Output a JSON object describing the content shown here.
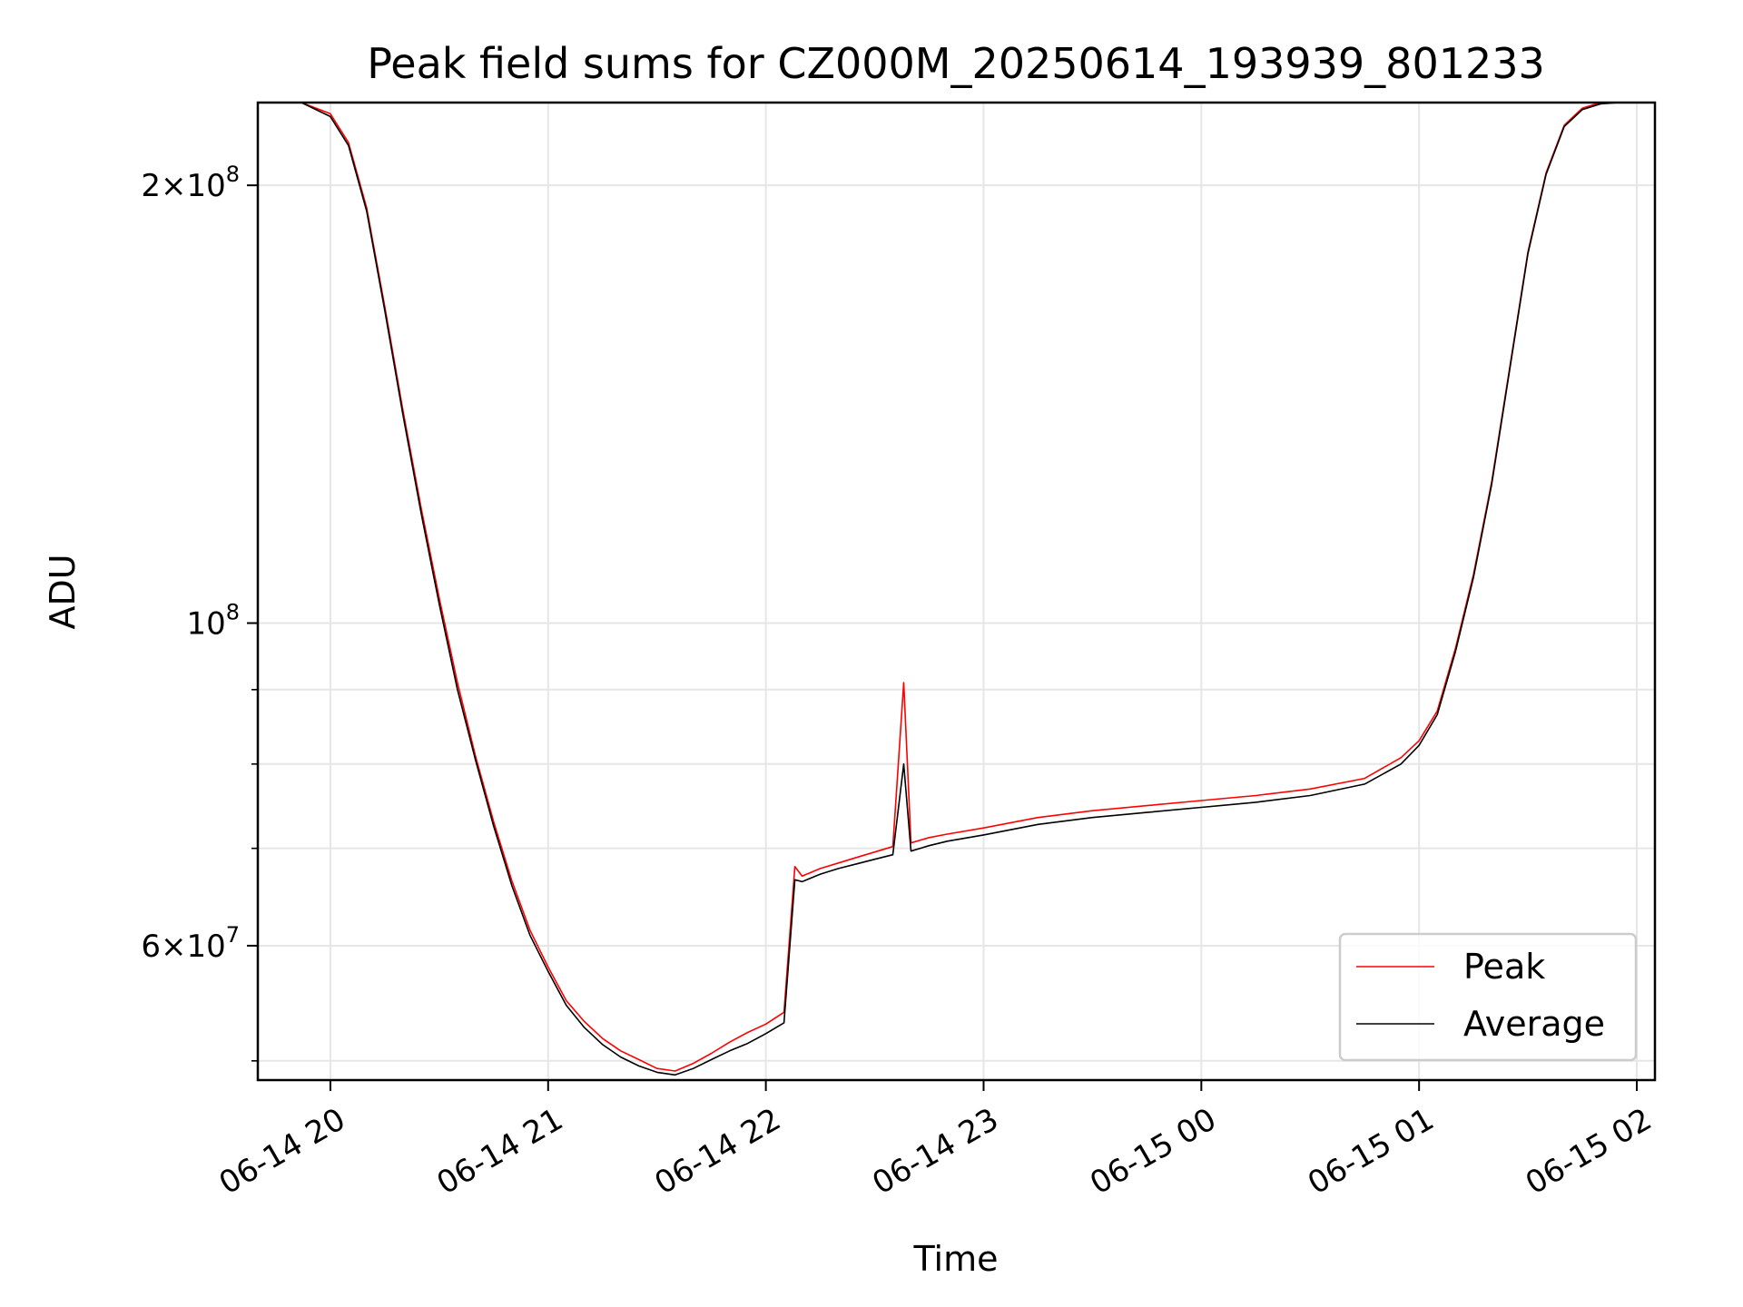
{
  "chart_data": {
    "type": "line",
    "title": "Peak field sums for CZ000M_20250614_193939_801233",
    "xlabel": "Time",
    "ylabel": "ADU",
    "x_scale": "time",
    "y_scale": "log",
    "xlim": [
      "2025-06-14 19:40",
      "2025-06-15 02:05"
    ],
    "ylim": [
      48500000,
      228000000
    ],
    "grid": true,
    "legend_position": "lower-right",
    "x_ticks": [
      {
        "value": "2025-06-14 20:00",
        "label": "06-14 20"
      },
      {
        "value": "2025-06-14 21:00",
        "label": "06-14 21"
      },
      {
        "value": "2025-06-14 22:00",
        "label": "06-14 22"
      },
      {
        "value": "2025-06-14 23:00",
        "label": "06-14 23"
      },
      {
        "value": "2025-06-15 00:00",
        "label": "06-15 00"
      },
      {
        "value": "2025-06-15 01:00",
        "label": "06-15 01"
      },
      {
        "value": "2025-06-15 02:00",
        "label": "06-15 02"
      }
    ],
    "y_major_ticks": [
      {
        "value": 200000000,
        "mantissa": "2",
        "exponent": "8"
      },
      {
        "value": 100000000,
        "mantissa": "",
        "exponent": "8"
      },
      {
        "value": 60000000,
        "mantissa": "6",
        "exponent": "7"
      }
    ],
    "y_minor_ticks": [
      90000000,
      80000000,
      70000000,
      50000000
    ],
    "series": [
      {
        "name": "Peak",
        "color": "#ff0000",
        "x": [
          "2025-06-14 19:40",
          "2025-06-14 19:52",
          "2025-06-14 20:00",
          "2025-06-14 20:05",
          "2025-06-14 20:10",
          "2025-06-14 20:15",
          "2025-06-14 20:20",
          "2025-06-14 20:25",
          "2025-06-14 20:30",
          "2025-06-14 20:35",
          "2025-06-14 20:40",
          "2025-06-14 20:45",
          "2025-06-14 20:50",
          "2025-06-14 20:55",
          "2025-06-14 21:00",
          "2025-06-14 21:05",
          "2025-06-14 21:10",
          "2025-06-14 21:15",
          "2025-06-14 21:20",
          "2025-06-14 21:25",
          "2025-06-14 21:30",
          "2025-06-14 21:35",
          "2025-06-14 21:40",
          "2025-06-14 21:45",
          "2025-06-14 21:50",
          "2025-06-14 21:55",
          "2025-06-14 22:00",
          "2025-06-14 22:05",
          "2025-06-14 22:08",
          "2025-06-14 22:10",
          "2025-06-14 22:15",
          "2025-06-14 22:20",
          "2025-06-14 22:25",
          "2025-06-14 22:30",
          "2025-06-14 22:35",
          "2025-06-14 22:38",
          "2025-06-14 22:40",
          "2025-06-14 22:45",
          "2025-06-14 22:50",
          "2025-06-14 23:00",
          "2025-06-14 23:15",
          "2025-06-14 23:30",
          "2025-06-14 23:45",
          "2025-06-15 00:00",
          "2025-06-15 00:15",
          "2025-06-15 00:30",
          "2025-06-15 00:45",
          "2025-06-15 00:55",
          "2025-06-15 01:00",
          "2025-06-15 01:05",
          "2025-06-15 01:10",
          "2025-06-15 01:15",
          "2025-06-15 01:20",
          "2025-06-15 01:25",
          "2025-06-15 01:30",
          "2025-06-15 01:35",
          "2025-06-15 01:40",
          "2025-06-15 01:45",
          "2025-06-15 01:50",
          "2025-06-15 01:55",
          "2025-06-15 02:00",
          "2025-06-15 02:05"
        ],
        "values": [
          228000000,
          228000000,
          224000000,
          214000000,
          193000000,
          165000000,
          140000000,
          120000000,
          104000000,
          91000000,
          81000000,
          73000000,
          66500000,
          61500000,
          58000000,
          55000000,
          53200000,
          51800000,
          50800000,
          50100000,
          49400000,
          49200000,
          49800000,
          50600000,
          51500000,
          52300000,
          53000000,
          54000000,
          68000000,
          67000000,
          67800000,
          68400000,
          69000000,
          69600000,
          70200000,
          91000000,
          70600000,
          71200000,
          71600000,
          72300000,
          73500000,
          74300000,
          74900000,
          75500000,
          76100000,
          76900000,
          78200000,
          80800000,
          83000000,
          87000000,
          96000000,
          108000000,
          125000000,
          150000000,
          180000000,
          204000000,
          220000000,
          226000000,
          228000000,
          228000000,
          228000000,
          228000000
        ]
      },
      {
        "name": "Average",
        "color": "#000000",
        "x": [
          "2025-06-14 19:40",
          "2025-06-14 19:52",
          "2025-06-14 20:00",
          "2025-06-14 20:05",
          "2025-06-14 20:10",
          "2025-06-14 20:15",
          "2025-06-14 20:20",
          "2025-06-14 20:25",
          "2025-06-14 20:30",
          "2025-06-14 20:35",
          "2025-06-14 20:40",
          "2025-06-14 20:45",
          "2025-06-14 20:50",
          "2025-06-14 20:55",
          "2025-06-14 21:00",
          "2025-06-14 21:05",
          "2025-06-14 21:10",
          "2025-06-14 21:15",
          "2025-06-14 21:20",
          "2025-06-14 21:25",
          "2025-06-14 21:30",
          "2025-06-14 21:35",
          "2025-06-14 21:40",
          "2025-06-14 21:45",
          "2025-06-14 21:50",
          "2025-06-14 21:55",
          "2025-06-14 22:00",
          "2025-06-14 22:05",
          "2025-06-14 22:08",
          "2025-06-14 22:10",
          "2025-06-14 22:15",
          "2025-06-14 22:20",
          "2025-06-14 22:25",
          "2025-06-14 22:30",
          "2025-06-14 22:35",
          "2025-06-14 22:38",
          "2025-06-14 22:40",
          "2025-06-14 22:45",
          "2025-06-14 22:50",
          "2025-06-14 23:00",
          "2025-06-14 23:15",
          "2025-06-14 23:30",
          "2025-06-14 23:45",
          "2025-06-15 00:00",
          "2025-06-15 00:15",
          "2025-06-15 00:30",
          "2025-06-15 00:45",
          "2025-06-15 00:55",
          "2025-06-15 01:00",
          "2025-06-15 01:05",
          "2025-06-15 01:10",
          "2025-06-15 01:15",
          "2025-06-15 01:20",
          "2025-06-15 01:25",
          "2025-06-15 01:30",
          "2025-06-15 01:35",
          "2025-06-15 01:40",
          "2025-06-15 01:45",
          "2025-06-15 01:50",
          "2025-06-15 01:55",
          "2025-06-15 02:00",
          "2025-06-15 02:05"
        ],
        "values": [
          228000000,
          228000000,
          223000000,
          213000000,
          192000000,
          164000000,
          139000000,
          119000000,
          103000000,
          90000000,
          80500000,
          72500000,
          66000000,
          61000000,
          57600000,
          54600000,
          52700000,
          51300000,
          50300000,
          49600000,
          49100000,
          48900000,
          49400000,
          50100000,
          50800000,
          51400000,
          52200000,
          53100000,
          66600000,
          66400000,
          67200000,
          67800000,
          68300000,
          68800000,
          69300000,
          80000000,
          69700000,
          70300000,
          70800000,
          71500000,
          72700000,
          73500000,
          74100000,
          74700000,
          75300000,
          76100000,
          77500000,
          80000000,
          82400000,
          86500000,
          95500000,
          107500000,
          124500000,
          149500000,
          179500000,
          203500000,
          219500000,
          225500000,
          227500000,
          228000000,
          228000000,
          228000000
        ]
      }
    ]
  }
}
